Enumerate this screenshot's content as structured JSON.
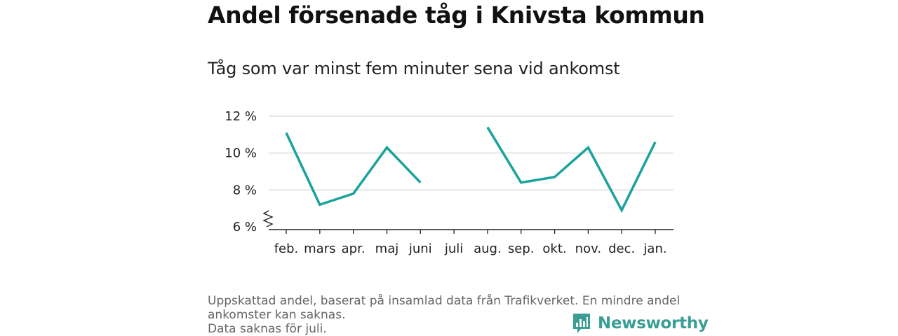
{
  "header": {
    "title": "Andel försenade tåg i Knivsta kommun",
    "subtitle": "Tåg som var minst fem minuter sena vid ankomst"
  },
  "footer": {
    "lines": [
      "Uppskattad andel, baserat på insamlad data från Trafikverket. En mindre andel",
      "ankomster kan saknas.",
      "Data saknas för juli."
    ]
  },
  "brand": {
    "name": "Newsworthy",
    "icon": "newsworthy-logo-icon",
    "color": "#3a9e94"
  },
  "chart_data": {
    "type": "line",
    "categories": [
      "feb.",
      "mars",
      "apr.",
      "maj",
      "juni",
      "juli",
      "aug.",
      "sep.",
      "okt.",
      "nov.",
      "dec.",
      "jan."
    ],
    "series": [
      {
        "values": [
          11.1,
          7.2,
          7.8,
          10.3,
          8.4,
          null,
          11.4,
          8.4,
          8.7,
          10.3,
          6.9,
          10.6
        ]
      }
    ],
    "yticks": [
      6,
      8,
      10,
      12
    ],
    "ytick_labels": [
      "6 %",
      "8 %",
      "10 %",
      "12 %"
    ],
    "ylim": [
      6,
      12
    ],
    "y_axis_break": true,
    "grid": true,
    "line_color": "#1aa39a",
    "grid_color": "#dddddd",
    "xlabel": "",
    "ylabel": ""
  }
}
